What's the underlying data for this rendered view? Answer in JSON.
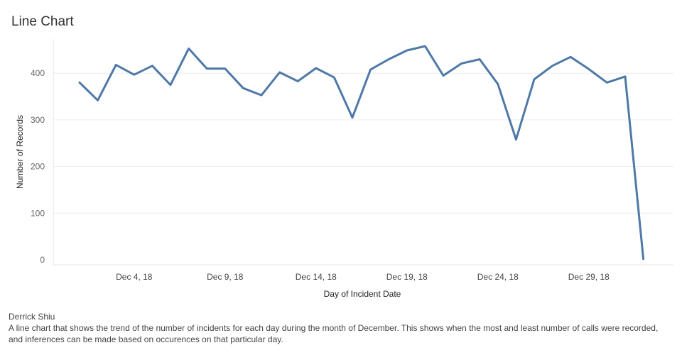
{
  "header": {
    "title": "Line Chart"
  },
  "caption": {
    "author": "Derrick Shiu",
    "description": "A line chart that shows the trend of the number of incidents for each day during the month of December. This shows when the most and least number of calls were recorded, and inferences can be made based on occurences on that particular day."
  },
  "colors": {
    "line": "#4e79a7",
    "gridline": "#eeeeee",
    "axis_text": "#666666"
  },
  "chart_data": {
    "type": "line",
    "title": "",
    "xlabel": "Day of Incident Date",
    "ylabel": "Number of Records",
    "x": [
      "Dec 1, 18",
      "Dec 2, 18",
      "Dec 3, 18",
      "Dec 4, 18",
      "Dec 5, 18",
      "Dec 6, 18",
      "Dec 7, 18",
      "Dec 8, 18",
      "Dec 9, 18",
      "Dec 10, 18",
      "Dec 11, 18",
      "Dec 12, 18",
      "Dec 13, 18",
      "Dec 14, 18",
      "Dec 15, 18",
      "Dec 16, 18",
      "Dec 17, 18",
      "Dec 18, 18",
      "Dec 19, 18",
      "Dec 20, 18",
      "Dec 21, 18",
      "Dec 22, 18",
      "Dec 23, 18",
      "Dec 24, 18",
      "Dec 25, 18",
      "Dec 26, 18",
      "Dec 27, 18",
      "Dec 28, 18",
      "Dec 29, 18",
      "Dec 30, 18",
      "Dec 31, 18",
      "Jan 1, 19"
    ],
    "series": [
      {
        "values": [
          380,
          342,
          418,
          397,
          416,
          375,
          453,
          410,
          410,
          368,
          353,
          402,
          383,
          411,
          391,
          305,
          408,
          430,
          449,
          458,
          395,
          421,
          430,
          377,
          258,
          387,
          416,
          435,
          409,
          380,
          393,
          2
        ]
      }
    ],
    "x_ticks": [
      "Dec 4, 18",
      "Dec 9, 18",
      "Dec 14, 18",
      "Dec 19, 18",
      "Dec 24, 18",
      "Dec 29, 18"
    ],
    "y_ticks": [
      0,
      100,
      200,
      300,
      400
    ],
    "ylim": [
      0,
      480
    ],
    "grid": true,
    "legend": "none"
  }
}
